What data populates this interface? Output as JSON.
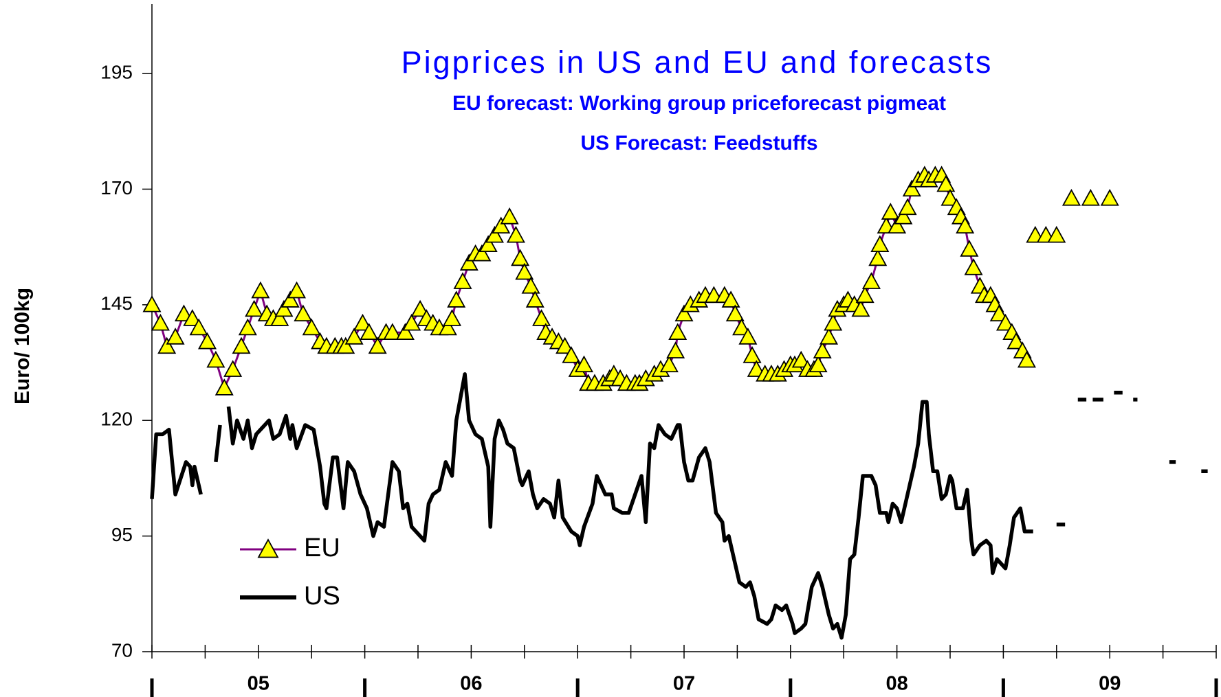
{
  "chart_data": {
    "type": "line",
    "title": "Pigprices in US and EU and forecasts",
    "subtitle": [
      "EU forecast: Working group priceforecast pigmeat",
      "US Forecast: Feedstuffs"
    ],
    "ylabel": "Euro/ 100kg",
    "xlim": [
      2005,
      2010
    ],
    "ylim": [
      70,
      210
    ],
    "yticks": [
      70,
      95,
      120,
      145,
      170,
      195
    ],
    "xticks": [
      {
        "value": 2005.5,
        "label": "05"
      },
      {
        "value": 2006.5,
        "label": "06"
      },
      {
        "value": 2007.5,
        "label": "07"
      },
      {
        "value": 2008.5,
        "label": "08"
      },
      {
        "value": 2009.5,
        "label": "09"
      }
    ],
    "xticks_minor": [
      2005,
      2005.25,
      2005.5,
      2005.75,
      2006,
      2006.25,
      2006.5,
      2006.75,
      2007,
      2007.25,
      2007.5,
      2007.75,
      2008,
      2008.25,
      2008.5,
      2008.75,
      2009,
      2009.25,
      2009.5,
      2009.75,
      2010
    ],
    "xticks_major": [
      2005,
      2006,
      2007,
      2008,
      2009,
      2010
    ],
    "legend": "lower left",
    "series": [
      {
        "name": "EU",
        "color": "#800080",
        "marker": "triangle",
        "marker_color": "#ffff00",
        "x": [
          2005.0,
          2005.04,
          2005.07,
          2005.11,
          2005.15,
          2005.19,
          2005.22,
          2005.26,
          2005.3,
          2005.34,
          2005.38,
          2005.42,
          2005.45,
          2005.48,
          2005.51,
          2005.54,
          2005.57,
          2005.6,
          2005.62,
          2005.65,
          2005.68,
          2005.71,
          2005.75,
          2005.79,
          2005.82,
          2005.86,
          2005.89,
          2005.91,
          2005.95,
          2005.99,
          2006.02,
          2006.06,
          2006.1,
          2006.13,
          2006.19,
          2006.22,
          2006.26,
          2006.29,
          2006.32,
          2006.35,
          2006.39,
          2006.41,
          2006.43,
          2006.46,
          2006.49,
          2006.52,
          2006.55,
          2006.58,
          2006.61,
          2006.64,
          2006.68,
          2006.71,
          2006.73,
          2006.75,
          2006.78,
          2006.8,
          2006.83,
          2006.85,
          2006.88,
          2006.91,
          2006.94,
          2006.97,
          2007.0,
          2007.03,
          2007.05,
          2007.08,
          2007.12,
          2007.15,
          2007.17,
          2007.2,
          2007.23,
          2007.27,
          2007.29,
          2007.32,
          2007.36,
          2007.39,
          2007.43,
          2007.46,
          2007.47,
          2007.5,
          2007.53,
          2007.57,
          2007.6,
          2007.64,
          2007.69,
          2007.72,
          2007.74,
          2007.77,
          2007.8,
          2007.82,
          2007.84,
          2007.88,
          2007.91,
          2007.94,
          2007.97,
          2008.0,
          2008.02,
          2008.05,
          2008.08,
          2008.11,
          2008.13,
          2008.15,
          2008.18,
          2008.2,
          2008.22,
          2008.25,
          2008.27,
          2008.3,
          2008.33,
          2008.35,
          2008.38,
          2008.41,
          2008.42,
          2008.45,
          2008.47,
          2008.5,
          2008.53,
          2008.55,
          2008.57,
          2008.6,
          2008.63,
          2008.65,
          2008.68,
          2008.71,
          2008.73,
          2008.75,
          2008.78,
          2008.8,
          2008.82,
          2008.84,
          2008.86,
          2008.89,
          2008.91,
          2008.94,
          2008.96,
          2008.98,
          2009.01,
          2009.04,
          2009.06,
          2009.09,
          2009.11,
          null,
          2009.15,
          null,
          2009.2,
          null,
          2009.25,
          null,
          2009.32,
          null,
          2009.41,
          null,
          2009.5
        ],
        "values": [
          145,
          141,
          136,
          138,
          143,
          142,
          140,
          137,
          133,
          127,
          131,
          136,
          140,
          144,
          148,
          143,
          142,
          142,
          144,
          146,
          148,
          143,
          140,
          137,
          136,
          136,
          136,
          136,
          138,
          141,
          139,
          136,
          139,
          139,
          139,
          141,
          144,
          142,
          141,
          140,
          140,
          142,
          146,
          150,
          154,
          156,
          156,
          158,
          160,
          162,
          164,
          160,
          155,
          152,
          149,
          146,
          142,
          139,
          138,
          137,
          136,
          134,
          131,
          132,
          128,
          128,
          128,
          129,
          130,
          129,
          128,
          128,
          128,
          129,
          130,
          131,
          132,
          135,
          139,
          143,
          145,
          146,
          147,
          147,
          147,
          146,
          143,
          140,
          138,
          134,
          131,
          130,
          130,
          130,
          131,
          132,
          132,
          133,
          131,
          131,
          132,
          135,
          138,
          141,
          144,
          145,
          146,
          145,
          144,
          147,
          150,
          155,
          158,
          162,
          165,
          162,
          164,
          166,
          170,
          172,
          173,
          172,
          173,
          173,
          171,
          168,
          166,
          164,
          162,
          157,
          153,
          149,
          147,
          147,
          145,
          143,
          141,
          139,
          137,
          135,
          133,
          null,
          160,
          null,
          160,
          null,
          160,
          null,
          168,
          null,
          168,
          null,
          168
        ]
      },
      {
        "name": "US",
        "color": "#000000",
        "x": [
          2005.0,
          2005.02,
          2005.05,
          2005.08,
          2005.11,
          2005.16,
          2005.18,
          2005.19,
          2005.2,
          2005.23,
          null,
          2005.3,
          2005.32,
          null,
          2005.36,
          2005.38,
          2005.4,
          2005.43,
          2005.45,
          2005.47,
          2005.49,
          2005.55,
          2005.57,
          2005.6,
          2005.63,
          2005.65,
          2005.66,
          2005.68,
          2005.72,
          2005.76,
          2005.79,
          2005.81,
          2005.82,
          2005.85,
          2005.87,
          2005.9,
          2005.92,
          2005.95,
          2005.98,
          2006.01,
          2006.04,
          2006.06,
          2006.09,
          2006.11,
          2006.13,
          2006.16,
          2006.18,
          2006.2,
          2006.22,
          2006.28,
          2006.3,
          2006.32,
          2006.35,
          2006.38,
          2006.41,
          2006.43,
          2006.47,
          2006.49,
          2006.52,
          2006.55,
          2006.58,
          2006.59,
          2006.61,
          2006.63,
          2006.65,
          2006.67,
          2006.7,
          2006.73,
          2006.74,
          2006.77,
          2006.79,
          2006.81,
          2006.84,
          2006.87,
          2006.89,
          2006.91,
          2006.93,
          2006.97,
          2007.0,
          2007.01,
          2007.03,
          2007.07,
          2007.09,
          2007.13,
          2007.16,
          2007.17,
          2007.21,
          2007.24,
          2007.27,
          2007.3,
          2007.32,
          2007.34,
          2007.36,
          2007.38,
          2007.41,
          2007.44,
          2007.47,
          2007.48,
          2007.5,
          2007.52,
          2007.54,
          2007.57,
          2007.6,
          2007.62,
          2007.65,
          2007.68,
          2007.69,
          2007.71,
          2007.74,
          2007.76,
          2007.79,
          2007.81,
          2007.83,
          2007.85,
          2007.89,
          2007.91,
          2007.93,
          2007.96,
          2007.98,
          2008.01,
          2008.02,
          2008.05,
          2008.07,
          2008.1,
          2008.13,
          2008.15,
          2008.18,
          2008.2,
          2008.22,
          2008.24,
          2008.26,
          2008.28,
          2008.3,
          2008.32,
          2008.34,
          2008.38,
          2008.4,
          2008.42,
          2008.45,
          2008.46,
          2008.48,
          2008.5,
          2008.52,
          2008.53,
          2008.56,
          2008.58,
          2008.6,
          2008.62,
          2008.64,
          2008.65,
          2008.67,
          2008.69,
          2008.71,
          2008.73,
          2008.75,
          2008.76,
          2008.78,
          2008.81,
          2008.83,
          2008.85,
          2008.86,
          2008.89,
          2008.92,
          2008.94,
          2008.95,
          2008.97,
          2009.01,
          2009.03,
          2009.05,
          2009.08,
          2009.1,
          2009.14,
          null,
          2009.25,
          2009.29,
          null,
          2009.35,
          2009.39,
          null,
          2009.42,
          2009.47,
          null,
          2009.52,
          2009.56,
          null,
          2009.61,
          2009.63,
          null,
          2009.78,
          2009.81,
          null,
          2009.93,
          2009.96
        ],
        "values": [
          103,
          117,
          117,
          118,
          104,
          111,
          110,
          106,
          110,
          104,
          null,
          111,
          119,
          null,
          123,
          115,
          120,
          116,
          120,
          114,
          117,
          120,
          116,
          117,
          121,
          116,
          119,
          114,
          119,
          118,
          110,
          102,
          101,
          112,
          112,
          101,
          111,
          109,
          104,
          101,
          95,
          98,
          97,
          104,
          111,
          109,
          101,
          102,
          97,
          94,
          102,
          104,
          105,
          111,
          108,
          120,
          130,
          120,
          117,
          116,
          110,
          97,
          116,
          120,
          118,
          115,
          114,
          107,
          106,
          109,
          104,
          101,
          103,
          102,
          99,
          107,
          99,
          96,
          95,
          93,
          97,
          102,
          108,
          104,
          104,
          101,
          100,
          100,
          104,
          108,
          98,
          115,
          114,
          119,
          117,
          116,
          119,
          119,
          111,
          107,
          107,
          112,
          114,
          111,
          100,
          98,
          94,
          95,
          89,
          85,
          84,
          85,
          82,
          77,
          76,
          77,
          80,
          79,
          80,
          76,
          74,
          75,
          76,
          84,
          87,
          84,
          78,
          75,
          76,
          73,
          78,
          90,
          91,
          99,
          108,
          108,
          106,
          100,
          100,
          98,
          102,
          101,
          98,
          100,
          106,
          110,
          115,
          124,
          124,
          117,
          109,
          109,
          103,
          104,
          108,
          107,
          101,
          101,
          105,
          94,
          91,
          93,
          94,
          93,
          87,
          90,
          88,
          93,
          99,
          101,
          96,
          96,
          null,
          97.5,
          97.5,
          null,
          124.5,
          124.5,
          null,
          124.5,
          124.5,
          null,
          126,
          126,
          null,
          124.5,
          124.5,
          null,
          111,
          111,
          null,
          109,
          109
        ]
      }
    ]
  }
}
